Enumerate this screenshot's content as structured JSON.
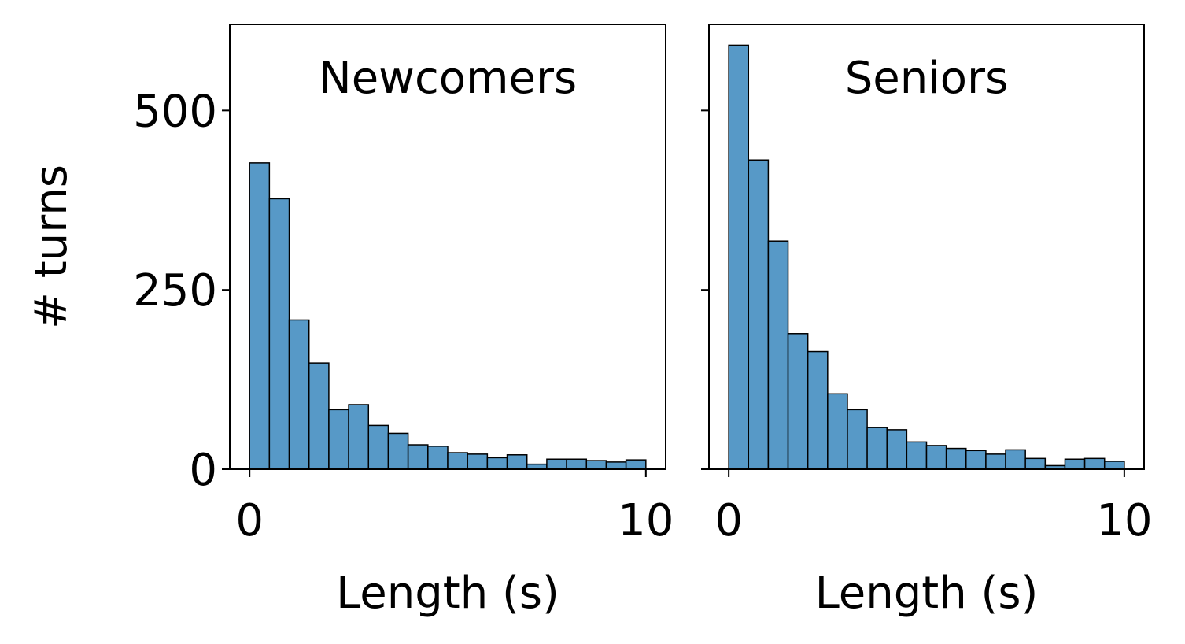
{
  "chart_data": [
    {
      "type": "histogram",
      "title": "Newcomers",
      "xlabel": "Length (s)",
      "ylabel": "# turns",
      "bins": [
        0,
        0.5,
        1,
        1.5,
        2,
        2.5,
        3,
        3.5,
        4,
        4.5,
        5,
        5.5,
        6,
        6.5,
        7,
        7.5,
        8,
        8.5,
        9,
        9.5,
        10
      ],
      "values": [
        427,
        377,
        208,
        148,
        83,
        90,
        61,
        50,
        34,
        32,
        23,
        21,
        16,
        20,
        7,
        14,
        14,
        12,
        10,
        13
      ],
      "color": "#5799c7",
      "xlim": [
        -0.5,
        10.5
      ],
      "xticks": [
        0,
        10
      ],
      "ylim": [
        0,
        620
      ],
      "yticks": [
        0,
        250,
        500
      ],
      "show_ytick_labels": true
    },
    {
      "type": "histogram",
      "title": "Seniors",
      "xlabel": "Length (s)",
      "bins": [
        0,
        0.5,
        1,
        1.5,
        2,
        2.5,
        3,
        3.5,
        4,
        4.5,
        5,
        5.5,
        6,
        6.5,
        7,
        7.5,
        8,
        8.5,
        9,
        9.5,
        10
      ],
      "values": [
        591,
        431,
        318,
        189,
        164,
        105,
        83,
        58,
        55,
        38,
        33,
        29,
        26,
        21,
        27,
        15,
        5,
        14,
        15,
        11
      ],
      "color": "#5799c7",
      "xlim": [
        -0.5,
        10.5
      ],
      "xticks": [
        0,
        10
      ],
      "ylim": [
        0,
        620
      ],
      "yticks": [
        0,
        250,
        500
      ],
      "show_ytick_labels": false
    }
  ]
}
